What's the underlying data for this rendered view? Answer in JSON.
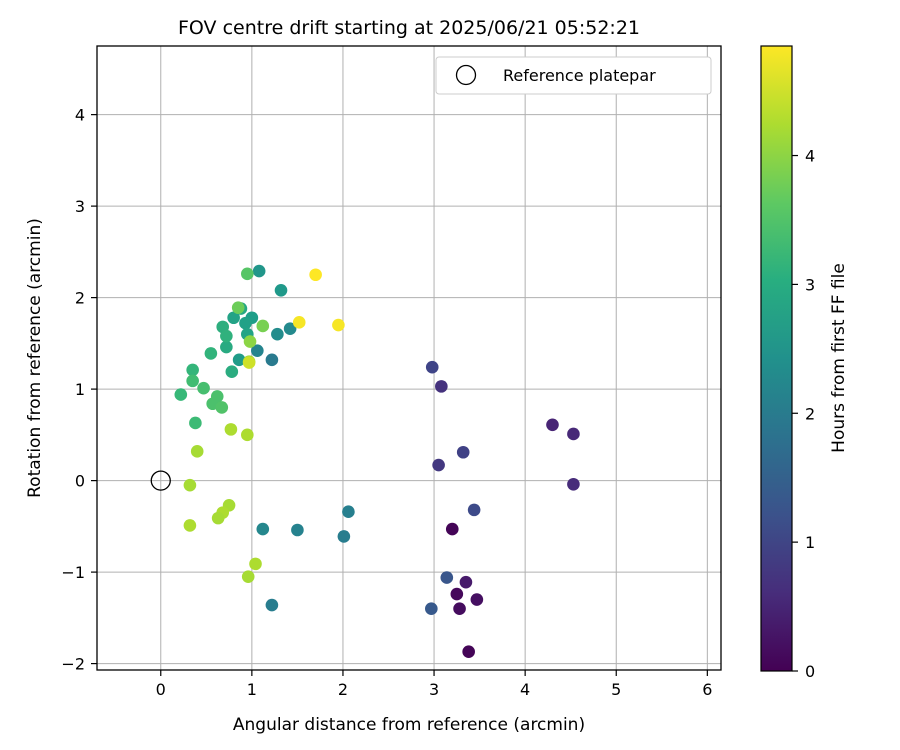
{
  "chart_data": {
    "type": "scatter",
    "title": "FOV centre drift starting at 2025/06/21 05:52:21",
    "xlabel": "Angular distance from reference (arcmin)",
    "ylabel": "Rotation from reference (arcmin)",
    "xlim": [
      -0.7,
      6.15
    ],
    "ylim": [
      -2.07,
      4.75
    ],
    "xticks": [
      0,
      1,
      2,
      3,
      4,
      5,
      6
    ],
    "yticks": [
      -2,
      -1,
      0,
      1,
      2,
      3,
      4
    ],
    "grid": true,
    "legend": {
      "position": "top-right",
      "entries": [
        "Reference platepar"
      ]
    },
    "reference_point": {
      "x": 0,
      "y": 0,
      "label": "Reference platepar"
    },
    "colorbar": {
      "label": "Hours from first FF file",
      "range": [
        0,
        4.85
      ],
      "ticks": [
        0,
        1,
        2,
        3,
        4
      ],
      "colormap": "viridis"
    },
    "points": [
      {
        "x": 3.38,
        "y": -1.87,
        "c": 0.05
      },
      {
        "x": 3.2,
        "y": -0.53,
        "c": 0.05
      },
      {
        "x": 3.25,
        "y": -1.24,
        "c": 0.1
      },
      {
        "x": 3.28,
        "y": -1.4,
        "c": 0.15
      },
      {
        "x": 3.47,
        "y": -1.3,
        "c": 0.2
      },
      {
        "x": 3.35,
        "y": -1.11,
        "c": 0.35
      },
      {
        "x": 4.3,
        "y": 0.61,
        "c": 0.5
      },
      {
        "x": 4.53,
        "y": 0.51,
        "c": 0.55
      },
      {
        "x": 4.53,
        "y": -0.04,
        "c": 0.6
      },
      {
        "x": 3.08,
        "y": 1.03,
        "c": 0.7
      },
      {
        "x": 3.05,
        "y": 0.17,
        "c": 0.8
      },
      {
        "x": 3.32,
        "y": 0.31,
        "c": 0.95
      },
      {
        "x": 2.98,
        "y": 1.24,
        "c": 1.0
      },
      {
        "x": 3.44,
        "y": -0.32,
        "c": 1.1
      },
      {
        "x": 3.14,
        "y": -1.06,
        "c": 1.3
      },
      {
        "x": 2.97,
        "y": -1.4,
        "c": 1.35
      },
      {
        "x": 1.22,
        "y": -1.36,
        "c": 2.05
      },
      {
        "x": 1.22,
        "y": 1.32,
        "c": 2.0
      },
      {
        "x": 2.01,
        "y": -0.61,
        "c": 2.05
      },
      {
        "x": 2.06,
        "y": -0.34,
        "c": 2.1
      },
      {
        "x": 1.5,
        "y": -0.54,
        "c": 2.15
      },
      {
        "x": 1.12,
        "y": -0.53,
        "c": 2.25
      },
      {
        "x": 1.06,
        "y": 1.42,
        "c": 2.2
      },
      {
        "x": 1.42,
        "y": 1.66,
        "c": 2.3
      },
      {
        "x": 1.28,
        "y": 1.6,
        "c": 2.35
      },
      {
        "x": 1.08,
        "y": 2.29,
        "c": 2.55
      },
      {
        "x": 1.32,
        "y": 2.08,
        "c": 2.6
      },
      {
        "x": 0.86,
        "y": 1.32,
        "c": 2.65
      },
      {
        "x": 1.0,
        "y": 1.78,
        "c": 2.7
      },
      {
        "x": 0.93,
        "y": 1.72,
        "c": 2.75
      },
      {
        "x": 0.8,
        "y": 1.78,
        "c": 2.8
      },
      {
        "x": 0.95,
        "y": 1.6,
        "c": 2.8
      },
      {
        "x": 0.88,
        "y": 1.88,
        "c": 2.9
      },
      {
        "x": 0.72,
        "y": 1.46,
        "c": 2.95
      },
      {
        "x": 0.78,
        "y": 1.19,
        "c": 3.0
      },
      {
        "x": 0.68,
        "y": 1.68,
        "c": 3.05
      },
      {
        "x": 0.72,
        "y": 1.58,
        "c": 3.1
      },
      {
        "x": 0.55,
        "y": 1.39,
        "c": 3.15
      },
      {
        "x": 0.35,
        "y": 1.21,
        "c": 3.2
      },
      {
        "x": 0.22,
        "y": 0.94,
        "c": 3.25
      },
      {
        "x": 0.38,
        "y": 0.63,
        "c": 3.3
      },
      {
        "x": 0.35,
        "y": 1.09,
        "c": 3.35
      },
      {
        "x": 0.47,
        "y": 1.01,
        "c": 3.4
      },
      {
        "x": 0.57,
        "y": 0.84,
        "c": 3.45
      },
      {
        "x": 0.62,
        "y": 0.92,
        "c": 3.45
      },
      {
        "x": 0.67,
        "y": 0.8,
        "c": 3.5
      },
      {
        "x": 0.95,
        "y": 2.26,
        "c": 3.55
      },
      {
        "x": 0.85,
        "y": 1.89,
        "c": 3.75
      },
      {
        "x": 1.12,
        "y": 1.69,
        "c": 3.85
      },
      {
        "x": 0.98,
        "y": 1.52,
        "c": 4.0
      },
      {
        "x": 0.97,
        "y": 1.3,
        "c": 4.1
      },
      {
        "x": 0.4,
        "y": 0.32,
        "c": 4.2
      },
      {
        "x": 0.77,
        "y": 0.56,
        "c": 4.25
      },
      {
        "x": 0.95,
        "y": 0.5,
        "c": 4.25
      },
      {
        "x": 0.32,
        "y": -0.05,
        "c": 4.2
      },
      {
        "x": 0.75,
        "y": -0.27,
        "c": 4.2
      },
      {
        "x": 0.68,
        "y": -0.35,
        "c": 4.25
      },
      {
        "x": 0.63,
        "y": -0.41,
        "c": 4.2
      },
      {
        "x": 0.32,
        "y": -0.49,
        "c": 4.25
      },
      {
        "x": 1.04,
        "y": -0.91,
        "c": 4.25
      },
      {
        "x": 0.96,
        "y": -1.05,
        "c": 4.2
      },
      {
        "x": 0.97,
        "y": 1.29,
        "c": 4.5
      },
      {
        "x": 1.52,
        "y": 1.73,
        "c": 4.8
      },
      {
        "x": 1.95,
        "y": 1.7,
        "c": 4.8
      },
      {
        "x": 1.7,
        "y": 2.25,
        "c": 4.85
      }
    ]
  }
}
